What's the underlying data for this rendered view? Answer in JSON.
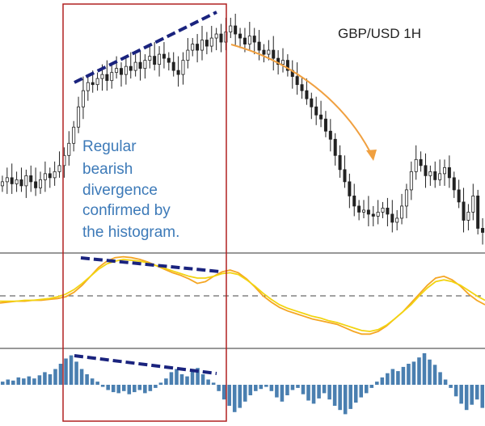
{
  "chart_data": {
    "type": "line",
    "title": "GBP/USD 1H",
    "annotation": [
      "Regular",
      "bearish",
      "divergence",
      "confirmed by",
      "the histogram."
    ],
    "grid": false,
    "price_panel": {
      "kind": "candlestick",
      "close": [
        1.5425,
        1.5427,
        1.5424,
        1.5426,
        1.5423,
        1.5428,
        1.5425,
        1.5422,
        1.5426,
        1.5429,
        1.5427,
        1.543,
        1.5433,
        1.5438,
        1.5444,
        1.5452,
        1.5462,
        1.547,
        1.5474,
        1.5473,
        1.5476,
        1.5478,
        1.5475,
        1.5479,
        1.5481,
        1.5478,
        1.5482,
        1.548,
        1.5484,
        1.5481,
        1.5485,
        1.5487,
        1.5483,
        1.5488,
        1.5486,
        1.5484,
        1.548,
        1.5478,
        1.5485,
        1.549,
        1.5493,
        1.549,
        1.5495,
        1.5492,
        1.5496,
        1.5498,
        1.5494,
        1.5499,
        1.5502,
        1.5498,
        1.5496,
        1.5493,
        1.5497,
        1.5494,
        1.549,
        1.5488,
        1.549,
        1.5486,
        1.5483,
        1.5485,
        1.548,
        1.5477,
        1.5473,
        1.547,
        1.5466,
        1.5462,
        1.5458,
        1.5456,
        1.545,
        1.5446,
        1.5438,
        1.5431,
        1.5425,
        1.5418,
        1.5413,
        1.541,
        1.5411,
        1.5409,
        1.5408,
        1.541,
        1.5412,
        1.5409,
        1.5405,
        1.5407,
        1.5413,
        1.5421,
        1.543,
        1.5436,
        1.5433,
        1.5428,
        1.543,
        1.5426,
        1.5429,
        1.5432,
        1.5427,
        1.5421,
        1.5415,
        1.5406,
        1.541,
        1.5418,
        1.5402,
        1.54
      ]
    },
    "oscillator_panel": {
      "kind": "two-line",
      "series": [
        {
          "values": [
            -0.8,
            -0.7,
            -0.6,
            -0.6,
            -0.5,
            -0.5,
            -0.4,
            -0.3,
            -0.1,
            0.4,
            1.2,
            2.2,
            3.2,
            3.9,
            4.3,
            4.4,
            4.3,
            4.1,
            3.8,
            3.4,
            3.0,
            2.6,
            2.3,
            1.9,
            1.4,
            1.6,
            2.2,
            2.7,
            2.9,
            2.6,
            1.9,
            1.0,
            0.0,
            -0.7,
            -1.3,
            -1.7,
            -2.0,
            -2.3,
            -2.6,
            -2.8,
            -3.0,
            -3.2,
            -3.6,
            -4.0,
            -4.3,
            -4.3,
            -4.0,
            -3.4,
            -2.6,
            -1.8,
            -0.8,
            0.2,
            1.2,
            2.0,
            2.2,
            1.8,
            1.1,
            0.2,
            -0.5,
            -1.0
          ]
        },
        {
          "values": [
            -0.6,
            -0.6,
            -0.6,
            -0.5,
            -0.5,
            -0.4,
            -0.3,
            -0.1,
            0.2,
            0.7,
            1.4,
            2.2,
            3.0,
            3.6,
            3.9,
            4.1,
            4.0,
            3.9,
            3.7,
            3.4,
            3.1,
            2.8,
            2.5,
            2.2,
            2.0,
            2.0,
            2.2,
            2.5,
            2.6,
            2.4,
            1.8,
            1.1,
            0.3,
            -0.4,
            -1.0,
            -1.4,
            -1.7,
            -2.0,
            -2.3,
            -2.5,
            -2.8,
            -3.0,
            -3.3,
            -3.6,
            -3.9,
            -4.0,
            -3.8,
            -3.3,
            -2.6,
            -1.8,
            -1.0,
            0.0,
            0.9,
            1.6,
            1.8,
            1.6,
            1.2,
            0.6,
            0.0,
            -0.5
          ]
        }
      ]
    },
    "histogram_panel": {
      "kind": "histogram",
      "values": [
        0.3,
        0.5,
        0.4,
        0.7,
        0.6,
        0.8,
        0.6,
        0.9,
        1.2,
        1.0,
        1.5,
        2.0,
        2.5,
        2.8,
        2.2,
        1.5,
        1.0,
        0.6,
        0.3,
        -0.2,
        -0.5,
        -0.7,
        -0.8,
        -0.6,
        -0.9,
        -0.7,
        -0.5,
        -0.8,
        -0.6,
        -0.3,
        0.2,
        0.6,
        1.2,
        1.5,
        1.0,
        0.8,
        1.3,
        1.6,
        1.0,
        0.5,
        0.2,
        -0.6,
        -1.4,
        -2.0,
        -2.6,
        -2.2,
        -1.6,
        -1.0,
        -0.6,
        -0.4,
        -0.2,
        -0.6,
        -1.2,
        -1.6,
        -1.0,
        -0.5,
        -0.3,
        -0.9,
        -1.5,
        -1.8,
        -1.3,
        -0.8,
        -1.4,
        -2.0,
        -2.4,
        -2.8,
        -2.3,
        -1.7,
        -1.2,
        -0.8,
        -0.3,
        0.3,
        0.7,
        1.1,
        1.5,
        1.3,
        1.7,
        2.0,
        2.2,
        2.6,
        3.0,
        2.4,
        1.9,
        1.2,
        0.5,
        -0.3,
        -1.1,
        -1.8,
        -2.4,
        -1.9,
        -1.4,
        -2.2
      ]
    }
  }
}
